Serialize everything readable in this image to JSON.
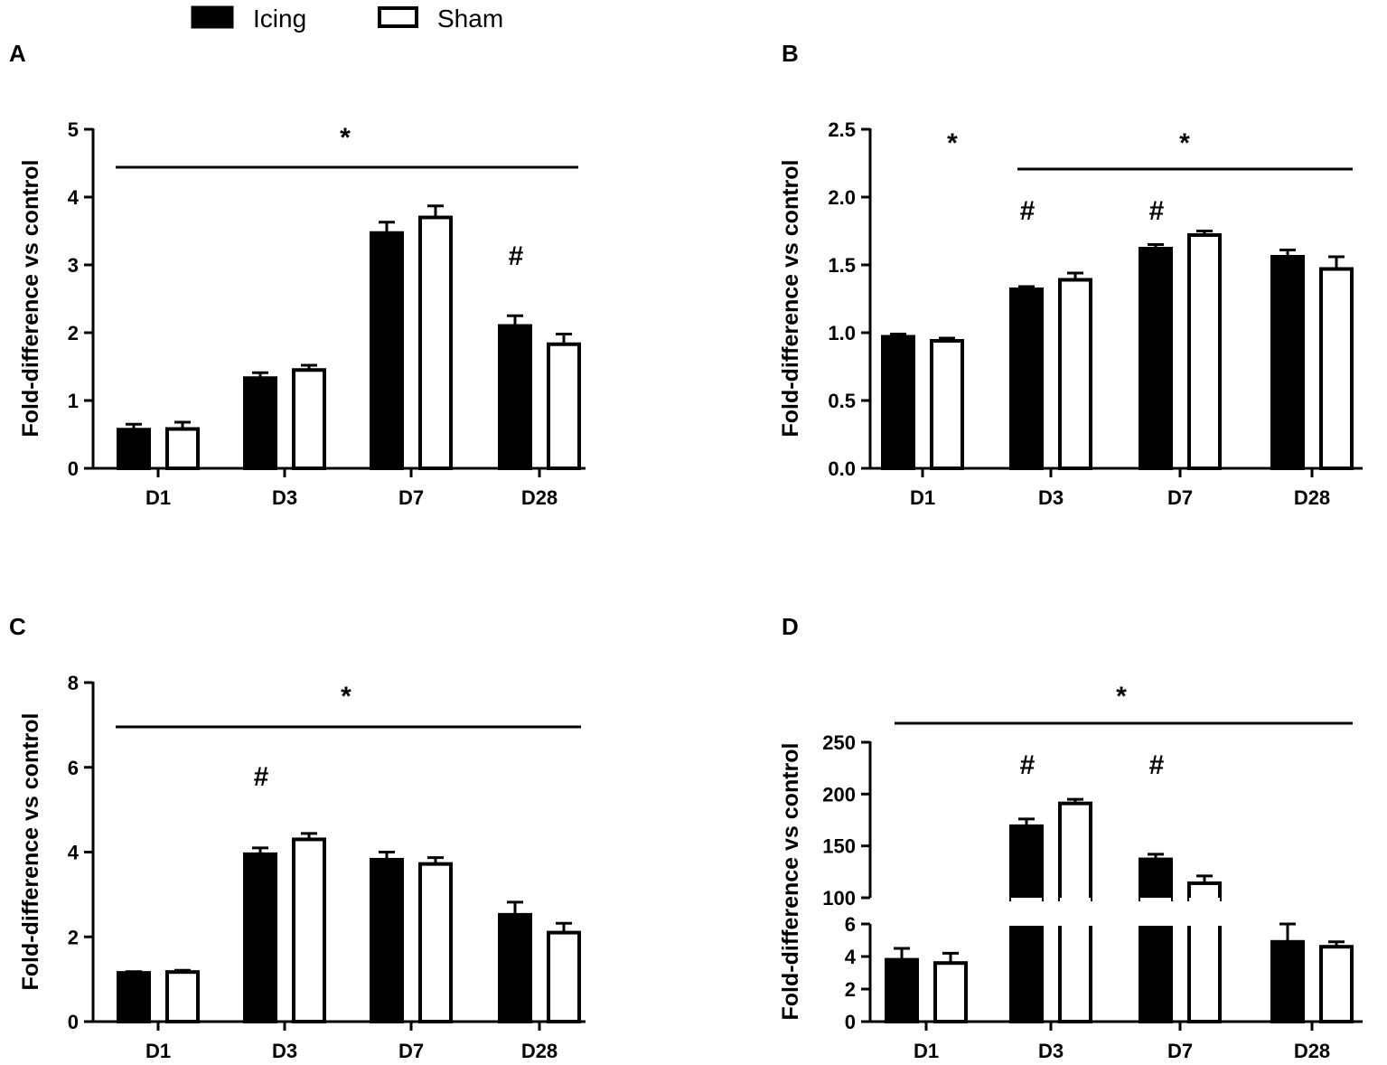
{
  "legend": [
    {
      "label": "Icing",
      "fill": "#000000"
    },
    {
      "label": "Sham",
      "fill": "#ffffff"
    }
  ],
  "colors": {
    "icing": "#000000",
    "sham": "#ffffff",
    "stroke": "#000000"
  },
  "chart_data": [
    {
      "type": "bar",
      "panel": "A",
      "categories": [
        "D1",
        "D3",
        "D7",
        "D28"
      ],
      "series": [
        {
          "name": "Icing",
          "values": [
            0.57,
            1.33,
            3.47,
            2.1
          ],
          "errors": [
            0.08,
            0.08,
            0.16,
            0.15
          ]
        },
        {
          "name": "Sham",
          "values": [
            0.58,
            1.45,
            3.7,
            1.83
          ],
          "errors": [
            0.1,
            0.07,
            0.17,
            0.15
          ]
        }
      ],
      "ylabel": "Fold-difference vs control",
      "xlabel": "",
      "ylim": [
        0,
        5
      ],
      "yticks": [
        "0",
        "1",
        "2",
        "3",
        "4",
        "5"
      ],
      "yticks_values": [
        0,
        1,
        2,
        3,
        4,
        5
      ],
      "annotations": [
        {
          "text": "*",
          "line_from": "D1",
          "line_to": "D28"
        },
        {
          "text": "#",
          "category": "D28"
        }
      ]
    },
    {
      "type": "bar",
      "panel": "B",
      "categories": [
        "D1",
        "D3",
        "D7",
        "D28"
      ],
      "series": [
        {
          "name": "Icing",
          "values": [
            0.97,
            1.32,
            1.62,
            1.56
          ],
          "errors": [
            0.02,
            0.02,
            0.03,
            0.05
          ]
        },
        {
          "name": "Sham",
          "values": [
            0.94,
            1.39,
            1.72,
            1.47
          ],
          "errors": [
            0.02,
            0.05,
            0.03,
            0.09
          ]
        }
      ],
      "ylabel": "Fold-difference vs control",
      "xlabel": "",
      "ylim": [
        0,
        2.5
      ],
      "yticks": [
        "0.0",
        "0.5",
        "1.0",
        "1.5",
        "2.0",
        "2.5"
      ],
      "yticks_values": [
        0,
        0.5,
        1,
        1.5,
        2,
        2.5
      ],
      "annotations": [
        {
          "text": "*",
          "category": "D1"
        },
        {
          "text": "*",
          "line_from": "D3",
          "line_to": "D28"
        },
        {
          "text": "#",
          "category": "D3"
        },
        {
          "text": "#",
          "category": "D7"
        }
      ]
    },
    {
      "type": "bar",
      "panel": "C",
      "categories": [
        "D1",
        "D3",
        "D7",
        "D28"
      ],
      "series": [
        {
          "name": "Icing",
          "values": [
            1.15,
            3.95,
            3.82,
            2.52
          ],
          "errors": [
            0.03,
            0.15,
            0.18,
            0.3
          ]
        },
        {
          "name": "Sham",
          "values": [
            1.17,
            4.3,
            3.72,
            2.1
          ],
          "errors": [
            0.04,
            0.14,
            0.15,
            0.22
          ]
        }
      ],
      "ylabel": "Fold-difference vs control",
      "xlabel": "",
      "ylim": [
        0,
        8
      ],
      "yticks": [
        "0",
        "2",
        "4",
        "6",
        "8"
      ],
      "yticks_values": [
        0,
        2,
        4,
        6,
        8
      ],
      "annotations": [
        {
          "text": "*",
          "line_from": "D1",
          "line_to": "D28"
        },
        {
          "text": "#",
          "category": "D3"
        }
      ]
    },
    {
      "type": "bar",
      "panel": "D",
      "broken_axis": true,
      "categories": [
        "D1",
        "D3",
        "D7",
        "D28"
      ],
      "series": [
        {
          "name": "Icing",
          "values": [
            3.8,
            169,
            137,
            4.9
          ],
          "errors": [
            0.7,
            7,
            5,
            1.1
          ]
        },
        {
          "name": "Sham",
          "values": [
            3.6,
            191,
            114,
            4.6
          ],
          "errors": [
            0.6,
            4,
            7,
            0.3
          ]
        }
      ],
      "ylabel": "Fold-difference vs control",
      "xlabel": "",
      "ylim_lower": [
        0,
        6
      ],
      "ylim_upper": [
        100,
        250
      ],
      "yticks_lower": [
        "0",
        "2",
        "4",
        "6"
      ],
      "yticks_lower_values": [
        0,
        2,
        4,
        6
      ],
      "yticks_upper": [
        "100",
        "150",
        "200",
        "250"
      ],
      "yticks_upper_values": [
        100,
        150,
        200,
        250
      ],
      "annotations": [
        {
          "text": "*",
          "line_from": "D1",
          "line_to": "D28"
        },
        {
          "text": "#",
          "category": "D3"
        },
        {
          "text": "#",
          "category": "D7"
        }
      ]
    }
  ]
}
